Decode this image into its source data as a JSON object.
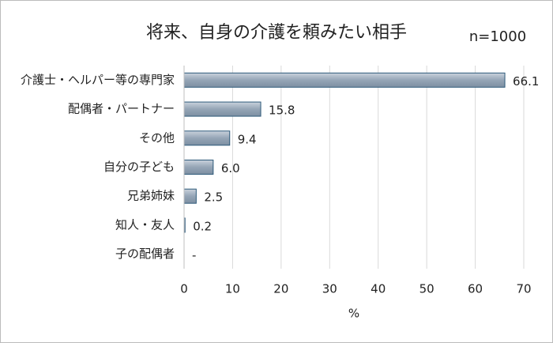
{
  "chart_data": {
    "type": "bar",
    "orientation": "horizontal",
    "title": "将来、自身の介護を頼みたい相手",
    "subtitle": "n=1000",
    "x_label": "%",
    "categories": [
      "介護士・ヘルパー等の専門家",
      "配偶者・パートナー",
      "その他",
      "自分の子ども",
      "兄弟姉妹",
      "知人・友人",
      "子の配偶者"
    ],
    "values": [
      66.1,
      15.8,
      9.4,
      6.0,
      2.5,
      0.2,
      null
    ],
    "value_labels": [
      "66.1",
      "15.8",
      "9.4",
      "6.0",
      "2.5",
      "0.2",
      "-"
    ],
    "color": "#95a5b6",
    "edge_color": "#2e5a7a",
    "xlim": [
      0,
      70
    ],
    "xticks": [
      0,
      10,
      20,
      30,
      40,
      50,
      60,
      70
    ],
    "grid": true
  }
}
